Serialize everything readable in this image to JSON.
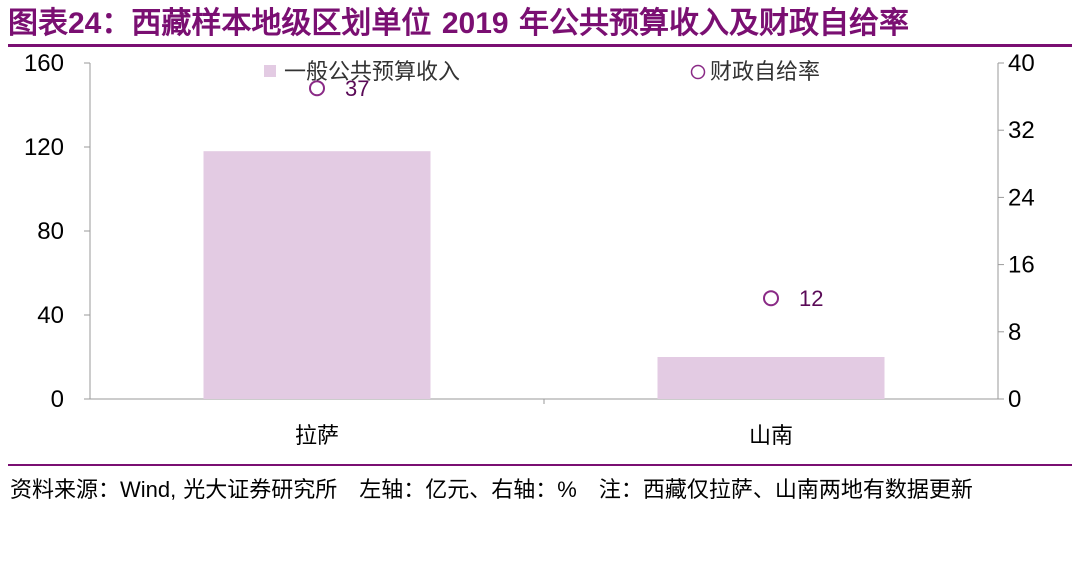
{
  "title": {
    "prefix": "图表",
    "number": "24",
    "colon": "：",
    "text": "西藏样本地级区划单位",
    "year": "2019",
    "suffix": "年公共预算收入及财政自给率"
  },
  "colors": {
    "accent": "#7a0f72",
    "bar": "#e3cbe3",
    "marker": "#8a2a86",
    "label": "#5a0a57"
  },
  "chart_data": {
    "type": "bar",
    "categories": [
      "拉萨",
      "山南"
    ],
    "series": [
      {
        "name": "一般公共预算收入",
        "type": "bar",
        "axis": "left",
        "values": [
          118,
          20
        ]
      },
      {
        "name": "财政自给率",
        "type": "scatter",
        "axis": "right",
        "values": [
          37,
          12
        ],
        "data_labels": [
          "37",
          "12"
        ]
      }
    ],
    "y_left": {
      "range": [
        0,
        160
      ],
      "ticks": [
        "0",
        "40",
        "80",
        "120",
        "160"
      ]
    },
    "y_right": {
      "range": [
        0,
        40
      ],
      "ticks": [
        "0",
        "8",
        "16",
        "24",
        "32",
        "40"
      ]
    },
    "legend_position": "top",
    "grid": false
  },
  "footer": {
    "source_label": "资料来源：",
    "source_text": "Wind,",
    "source_org": " 光大证券研究所　左轴：亿元、右轴：",
    "percent": "%",
    "note": "　注：西藏仅拉萨、山南两地有数据更新"
  }
}
